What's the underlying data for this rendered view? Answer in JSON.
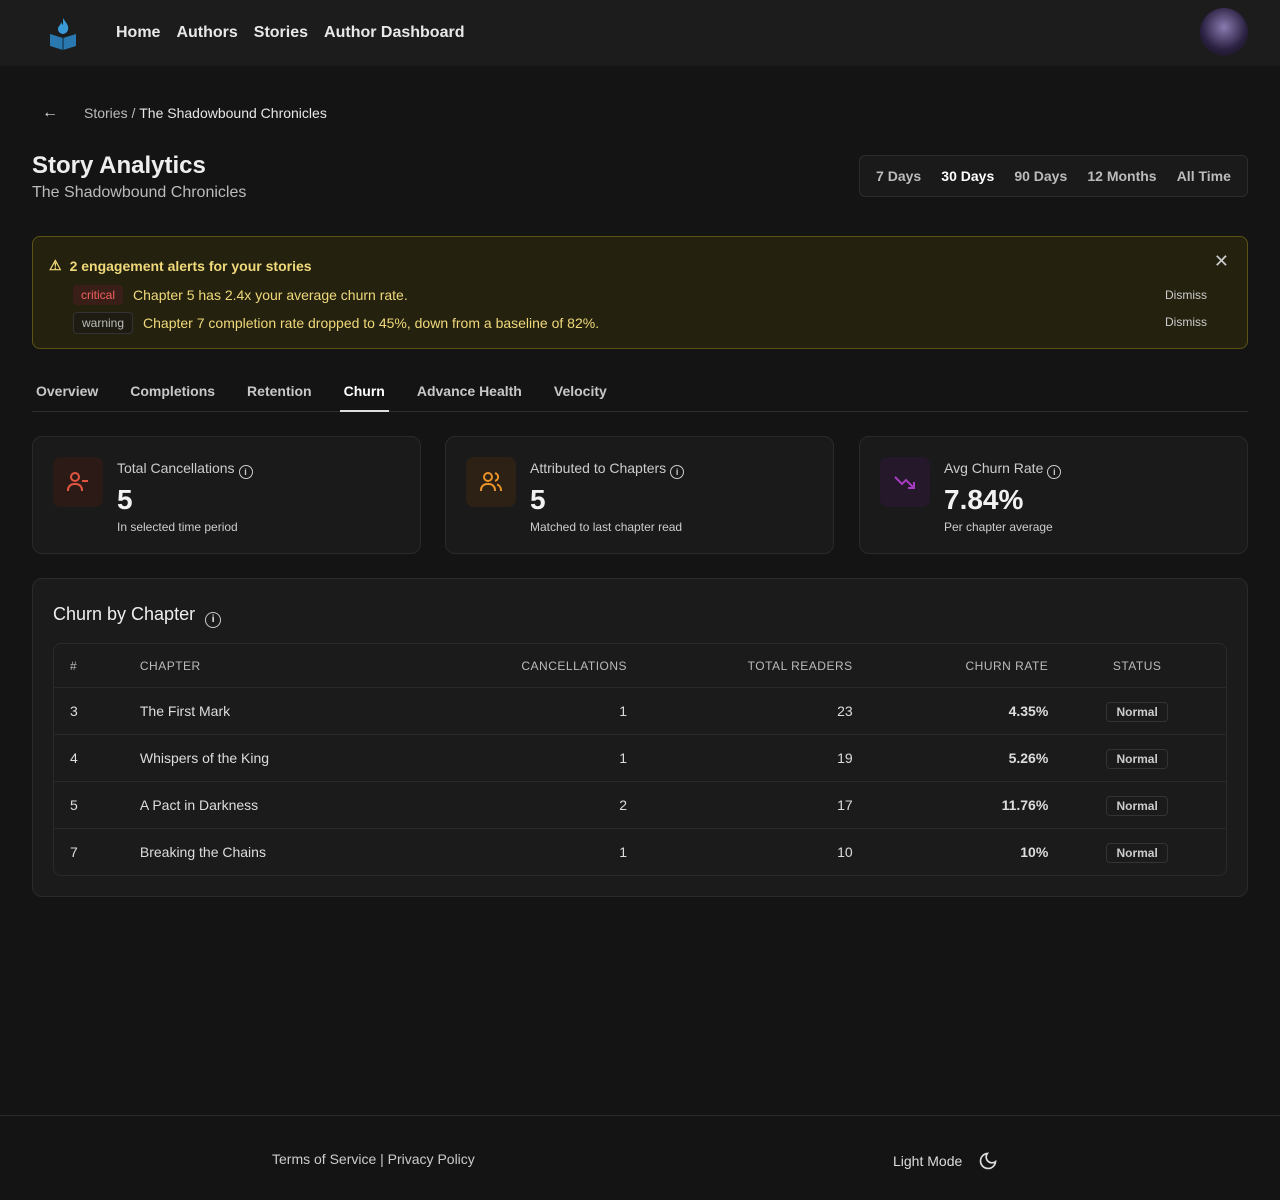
{
  "nav": {
    "items": [
      "Home",
      "Authors",
      "Stories",
      "Author Dashboard"
    ]
  },
  "breadcrumb": {
    "parent": "Stories",
    "separator": " / ",
    "current": "The Shadowbound Chronicles"
  },
  "header": {
    "title": "Story Analytics",
    "subtitle": "The Shadowbound Chronicles"
  },
  "ranges": {
    "items": [
      "7 Days",
      "30 Days",
      "90 Days",
      "12 Months",
      "All Time"
    ],
    "selected": "30 Days"
  },
  "alerts": {
    "title": "2 engagement alerts for your stories",
    "items": [
      {
        "level": "critical",
        "text": "Chapter 5 has 2.4x your average churn rate.",
        "dismiss": "Dismiss"
      },
      {
        "level": "warning",
        "text": "Chapter 7 completion rate dropped to 45%, down from a baseline of 82%.",
        "dismiss": "Dismiss"
      }
    ]
  },
  "tabs": {
    "items": [
      "Overview",
      "Completions",
      "Retention",
      "Churn",
      "Advance Health",
      "Velocity"
    ],
    "selected": "Churn"
  },
  "cards": [
    {
      "label": "Total Cancellations",
      "value": "5",
      "desc": "In selected time period",
      "icon": "user-minus-icon",
      "color": "#e0553f"
    },
    {
      "label": "Attributed to Chapters",
      "value": "5",
      "desc": "Matched to last chapter read",
      "icon": "users-icon",
      "color": "#e8922a"
    },
    {
      "label": "Avg Churn Rate",
      "value": "7.84%",
      "desc": "Per chapter average",
      "icon": "trending-down-icon",
      "color": "#a63cc0"
    }
  ],
  "table": {
    "title": "Churn by Chapter",
    "headers": [
      "#",
      "CHAPTER",
      "CANCELLATIONS",
      "TOTAL READERS",
      "CHURN RATE",
      "STATUS"
    ],
    "rows": [
      [
        "3",
        "The First Mark",
        "1",
        "23",
        "4.35%",
        "Normal"
      ],
      [
        "4",
        "Whispers of the King",
        "1",
        "19",
        "5.26%",
        "Normal"
      ],
      [
        "5",
        "A Pact in Darkness",
        "2",
        "17",
        "11.76%",
        "Normal"
      ],
      [
        "7",
        "Breaking the Chains",
        "1",
        "10",
        "10%",
        "Normal"
      ]
    ]
  },
  "footer": {
    "links": "Terms of Service | Privacy Policy",
    "theme_toggle": "Light Mode"
  }
}
